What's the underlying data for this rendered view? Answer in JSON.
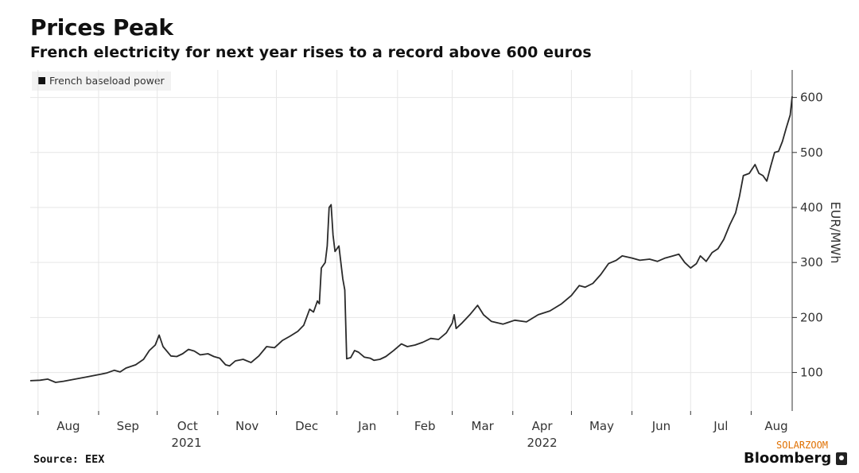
{
  "header": {
    "title": "Prices Peak",
    "subtitle": "French electricity for next year rises to a record above 600 euros"
  },
  "footer": {
    "source": "Source: EEX",
    "brand": "Bloomberg",
    "watermark": "SOLARZOOM"
  },
  "colors": {
    "line": "#2a2a2a",
    "grid": "#e6e6e6",
    "axis": "#333333",
    "watermark": "#e07000"
  },
  "chart_data": {
    "type": "line",
    "title": "Prices Peak",
    "subtitle": "French electricity for next year rises to a record above 600 euros",
    "ylabel": "EUR/MWh",
    "xlabel": "",
    "ylim": [
      30,
      650
    ],
    "xlim": [
      "2021-07-28",
      "2022-08-22"
    ],
    "yticks": [
      100,
      200,
      300,
      400,
      500,
      600
    ],
    "xticks": [
      {
        "label": "Aug",
        "date": "2021-08-01"
      },
      {
        "label": "Sep",
        "date": "2021-09-01"
      },
      {
        "label": "Oct",
        "date": "2021-10-01"
      },
      {
        "label": "Nov",
        "date": "2021-11-01"
      },
      {
        "label": "Dec",
        "date": "2021-12-01"
      },
      {
        "label": "Jan",
        "date": "2022-01-01"
      },
      {
        "label": "Feb",
        "date": "2022-02-01"
      },
      {
        "label": "Mar",
        "date": "2022-03-01"
      },
      {
        "label": "Apr",
        "date": "2022-04-01"
      },
      {
        "label": "May",
        "date": "2022-05-01"
      },
      {
        "label": "Jun",
        "date": "2022-06-01"
      },
      {
        "label": "Jul",
        "date": "2022-07-01"
      },
      {
        "label": "Aug",
        "date": "2022-08-01"
      }
    ],
    "year_labels": [
      {
        "label": "2021",
        "date": "2021-10-01"
      },
      {
        "label": "2022",
        "date": "2022-04-01"
      }
    ],
    "legend": "top-left",
    "grid": true,
    "series": [
      {
        "name": "French baseload power",
        "points": [
          [
            "2021-07-28",
            85
          ],
          [
            "2021-08-02",
            86
          ],
          [
            "2021-08-06",
            88
          ],
          [
            "2021-08-10",
            82
          ],
          [
            "2021-08-14",
            84
          ],
          [
            "2021-08-20",
            88
          ],
          [
            "2021-08-26",
            92
          ],
          [
            "2021-09-01",
            96
          ],
          [
            "2021-09-05",
            99
          ],
          [
            "2021-09-09",
            104
          ],
          [
            "2021-09-12",
            101
          ],
          [
            "2021-09-15",
            108
          ],
          [
            "2021-09-20",
            114
          ],
          [
            "2021-09-24",
            124
          ],
          [
            "2021-09-27",
            140
          ],
          [
            "2021-09-30",
            150
          ],
          [
            "2021-10-02",
            168
          ],
          [
            "2021-10-04",
            147
          ],
          [
            "2021-10-08",
            130
          ],
          [
            "2021-10-11",
            129
          ],
          [
            "2021-10-14",
            134
          ],
          [
            "2021-10-17",
            142
          ],
          [
            "2021-10-20",
            139
          ],
          [
            "2021-10-23",
            132
          ],
          [
            "2021-10-27",
            134
          ],
          [
            "2021-10-30",
            129
          ],
          [
            "2021-11-02",
            126
          ],
          [
            "2021-11-05",
            114
          ],
          [
            "2021-11-07",
            112
          ],
          [
            "2021-11-10",
            121
          ],
          [
            "2021-11-14",
            124
          ],
          [
            "2021-11-18",
            118
          ],
          [
            "2021-11-22",
            130
          ],
          [
            "2021-11-26",
            147
          ],
          [
            "2021-11-30",
            145
          ],
          [
            "2021-12-04",
            158
          ],
          [
            "2021-12-08",
            166
          ],
          [
            "2021-12-12",
            175
          ],
          [
            "2021-12-15",
            186
          ],
          [
            "2021-12-18",
            215
          ],
          [
            "2021-12-20",
            210
          ],
          [
            "2021-12-22",
            230
          ],
          [
            "2021-12-23",
            225
          ],
          [
            "2021-12-24",
            290
          ],
          [
            "2021-12-26",
            300
          ],
          [
            "2021-12-27",
            330
          ],
          [
            "2021-12-28",
            400
          ],
          [
            "2021-12-29",
            405
          ],
          [
            "2021-12-30",
            350
          ],
          [
            "2021-12-31",
            320
          ],
          [
            "2022-01-02",
            330
          ],
          [
            "2022-01-04",
            270
          ],
          [
            "2022-01-05",
            250
          ],
          [
            "2022-01-06",
            125
          ],
          [
            "2022-01-08",
            127
          ],
          [
            "2022-01-10",
            140
          ],
          [
            "2022-01-12",
            137
          ],
          [
            "2022-01-15",
            128
          ],
          [
            "2022-01-18",
            126
          ],
          [
            "2022-01-20",
            122
          ],
          [
            "2022-01-23",
            124
          ],
          [
            "2022-01-26",
            129
          ],
          [
            "2022-01-30",
            140
          ],
          [
            "2022-02-03",
            152
          ],
          [
            "2022-02-06",
            147
          ],
          [
            "2022-02-10",
            150
          ],
          [
            "2022-02-14",
            155
          ],
          [
            "2022-02-18",
            162
          ],
          [
            "2022-02-22",
            160
          ],
          [
            "2022-02-26",
            172
          ],
          [
            "2022-03-01",
            190
          ],
          [
            "2022-03-02",
            205
          ],
          [
            "2022-03-03",
            180
          ],
          [
            "2022-03-06",
            190
          ],
          [
            "2022-03-10",
            205
          ],
          [
            "2022-03-14",
            222
          ],
          [
            "2022-03-17",
            205
          ],
          [
            "2022-03-21",
            193
          ],
          [
            "2022-03-27",
            188
          ],
          [
            "2022-04-02",
            195
          ],
          [
            "2022-04-08",
            192
          ],
          [
            "2022-04-14",
            205
          ],
          [
            "2022-04-20",
            212
          ],
          [
            "2022-04-26",
            225
          ],
          [
            "2022-05-01",
            240
          ],
          [
            "2022-05-05",
            258
          ],
          [
            "2022-05-08",
            255
          ],
          [
            "2022-05-12",
            262
          ],
          [
            "2022-05-16",
            278
          ],
          [
            "2022-05-20",
            298
          ],
          [
            "2022-05-24",
            304
          ],
          [
            "2022-05-27",
            312
          ],
          [
            "2022-06-01",
            308
          ],
          [
            "2022-06-05",
            304
          ],
          [
            "2022-06-10",
            306
          ],
          [
            "2022-06-14",
            302
          ],
          [
            "2022-06-18",
            308
          ],
          [
            "2022-06-22",
            312
          ],
          [
            "2022-06-25",
            315
          ],
          [
            "2022-06-28",
            300
          ],
          [
            "2022-07-01",
            290
          ],
          [
            "2022-07-04",
            298
          ],
          [
            "2022-07-06",
            312
          ],
          [
            "2022-07-09",
            302
          ],
          [
            "2022-07-12",
            318
          ],
          [
            "2022-07-15",
            325
          ],
          [
            "2022-07-18",
            342
          ],
          [
            "2022-07-21",
            368
          ],
          [
            "2022-07-24",
            390
          ],
          [
            "2022-07-26",
            420
          ],
          [
            "2022-07-28",
            458
          ],
          [
            "2022-07-31",
            462
          ],
          [
            "2022-08-03",
            478
          ],
          [
            "2022-08-05",
            462
          ],
          [
            "2022-08-07",
            458
          ],
          [
            "2022-08-09",
            448
          ],
          [
            "2022-08-11",
            475
          ],
          [
            "2022-08-13",
            500
          ],
          [
            "2022-08-15",
            502
          ],
          [
            "2022-08-17",
            520
          ],
          [
            "2022-08-19",
            545
          ],
          [
            "2022-08-21",
            568
          ],
          [
            "2022-08-22",
            602
          ]
        ]
      }
    ]
  }
}
